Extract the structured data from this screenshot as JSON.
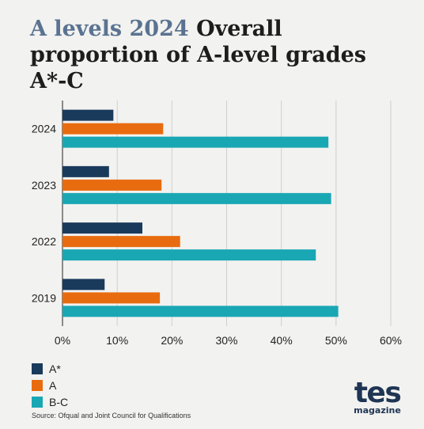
{
  "header": {
    "title_highlight": "A levels 2024",
    "title_rest": "Overall proportion of A-level grades A*-C"
  },
  "chart_data": {
    "type": "bar",
    "orientation": "horizontal",
    "categories": [
      "2024",
      "2023",
      "2022",
      "2019"
    ],
    "series": [
      {
        "name": "A*",
        "color": "#1a3a5c",
        "values": [
          9.3,
          8.5,
          14.6,
          7.7
        ]
      },
      {
        "name": "A",
        "color": "#e86c0f",
        "values": [
          18.4,
          18.1,
          21.5,
          17.8
        ]
      },
      {
        "name": "B-C",
        "color": "#1aa7b4",
        "values": [
          48.6,
          49.1,
          46.3,
          50.4
        ]
      }
    ],
    "xlim": [
      0,
      60
    ],
    "xticks": [
      "0%",
      "10%",
      "20%",
      "30%",
      "40%",
      "50%",
      "60%"
    ],
    "grid": true,
    "legend_position": "bottom-left"
  },
  "footer": {
    "source": "Source: Ofqual and Joint Council for Qualifications",
    "logo_main": "tes",
    "logo_sub": "magazine"
  }
}
